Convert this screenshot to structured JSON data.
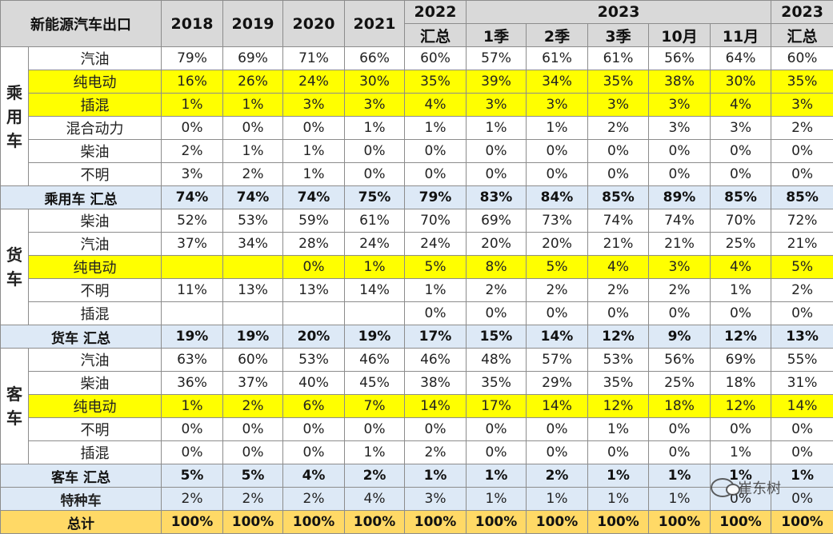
{
  "header": {
    "title": "新能源汽车出口",
    "years": [
      "2018",
      "2019",
      "2020",
      "2021"
    ],
    "y2022": [
      "2022",
      "汇总"
    ],
    "y2023_label": "2023",
    "y2023_sub": [
      "1季",
      "2季",
      "3季",
      "10月",
      "11月"
    ],
    "y2023_total": [
      "2023",
      "汇总"
    ]
  },
  "groups": [
    {
      "label": "乘用车",
      "rows": [
        {
          "name": "汽油",
          "hl": false,
          "values": [
            "79%",
            "69%",
            "71%",
            "66%",
            "60%",
            "57%",
            "61%",
            "61%",
            "56%",
            "64%",
            "60%"
          ]
        },
        {
          "name": "纯电动",
          "hl": true,
          "values": [
            "16%",
            "26%",
            "24%",
            "30%",
            "35%",
            "39%",
            "34%",
            "35%",
            "38%",
            "30%",
            "35%"
          ]
        },
        {
          "name": "插混",
          "hl": true,
          "values": [
            "1%",
            "1%",
            "3%",
            "3%",
            "4%",
            "3%",
            "3%",
            "3%",
            "3%",
            "4%",
            "3%"
          ]
        },
        {
          "name": "混合动力",
          "hl": false,
          "values": [
            "0%",
            "0%",
            "0%",
            "1%",
            "1%",
            "1%",
            "1%",
            "2%",
            "3%",
            "3%",
            "2%"
          ]
        },
        {
          "name": "柴油",
          "hl": false,
          "values": [
            "2%",
            "1%",
            "1%",
            "0%",
            "0%",
            "0%",
            "0%",
            "0%",
            "0%",
            "0%",
            "0%"
          ]
        },
        {
          "name": "不明",
          "hl": false,
          "values": [
            "3%",
            "2%",
            "1%",
            "0%",
            "0%",
            "0%",
            "0%",
            "0%",
            "0%",
            "0%",
            "0%"
          ]
        }
      ],
      "summary": {
        "name": "乘用车 汇总",
        "values": [
          "74%",
          "74%",
          "74%",
          "75%",
          "79%",
          "83%",
          "84%",
          "85%",
          "89%",
          "85%",
          "85%"
        ]
      }
    },
    {
      "label": "货车",
      "rows": [
        {
          "name": "柴油",
          "hl": false,
          "values": [
            "52%",
            "53%",
            "59%",
            "61%",
            "70%",
            "69%",
            "73%",
            "74%",
            "74%",
            "70%",
            "72%"
          ]
        },
        {
          "name": "汽油",
          "hl": false,
          "values": [
            "37%",
            "34%",
            "28%",
            "24%",
            "24%",
            "20%",
            "20%",
            "21%",
            "21%",
            "25%",
            "21%"
          ]
        },
        {
          "name": "纯电动",
          "hl": true,
          "values": [
            "",
            "",
            "0%",
            "1%",
            "5%",
            "8%",
            "5%",
            "4%",
            "3%",
            "4%",
            "5%"
          ]
        },
        {
          "name": "不明",
          "hl": false,
          "values": [
            "11%",
            "13%",
            "13%",
            "14%",
            "1%",
            "2%",
            "2%",
            "2%",
            "2%",
            "1%",
            "2%"
          ]
        },
        {
          "name": "插混",
          "hl": false,
          "values": [
            "",
            "",
            "",
            "",
            "0%",
            "0%",
            "0%",
            "0%",
            "0%",
            "0%",
            "0%"
          ]
        }
      ],
      "summary": {
        "name": "货车 汇总",
        "values": [
          "19%",
          "19%",
          "20%",
          "19%",
          "17%",
          "15%",
          "14%",
          "12%",
          "9%",
          "12%",
          "13%"
        ]
      }
    },
    {
      "label": "客车",
      "rows": [
        {
          "name": "汽油",
          "hl": false,
          "values": [
            "63%",
            "60%",
            "53%",
            "46%",
            "46%",
            "48%",
            "57%",
            "53%",
            "56%",
            "69%",
            "55%"
          ]
        },
        {
          "name": "柴油",
          "hl": false,
          "values": [
            "36%",
            "37%",
            "40%",
            "45%",
            "38%",
            "35%",
            "29%",
            "35%",
            "25%",
            "18%",
            "31%"
          ]
        },
        {
          "name": "纯电动",
          "hl": true,
          "values": [
            "1%",
            "2%",
            "6%",
            "7%",
            "14%",
            "17%",
            "14%",
            "12%",
            "18%",
            "12%",
            "14%"
          ]
        },
        {
          "name": "不明",
          "hl": false,
          "values": [
            "0%",
            "0%",
            "0%",
            "0%",
            "0%",
            "0%",
            "0%",
            "1%",
            "0%",
            "0%",
            "0%"
          ]
        },
        {
          "name": "插混",
          "hl": false,
          "values": [
            "0%",
            "0%",
            "0%",
            "1%",
            "2%",
            "0%",
            "0%",
            "0%",
            "0%",
            "1%",
            "0%"
          ]
        }
      ],
      "summary": {
        "name": "客车 汇总",
        "values": [
          "5%",
          "5%",
          "4%",
          "2%",
          "1%",
          "1%",
          "2%",
          "1%",
          "1%",
          "1%",
          "1%"
        ]
      }
    }
  ],
  "special": {
    "name": "特种车",
    "values": [
      "2%",
      "2%",
      "2%",
      "4%",
      "3%",
      "1%",
      "1%",
      "1%",
      "1%",
      "0%",
      "0%"
    ]
  },
  "total": {
    "name": "总计",
    "values": [
      "100%",
      "100%",
      "100%",
      "100%",
      "100%",
      "100%",
      "100%",
      "100%",
      "100%",
      "100%",
      "100%"
    ]
  },
  "watermark": {
    "icon": "wechat-icon",
    "text": "崔东树"
  }
}
